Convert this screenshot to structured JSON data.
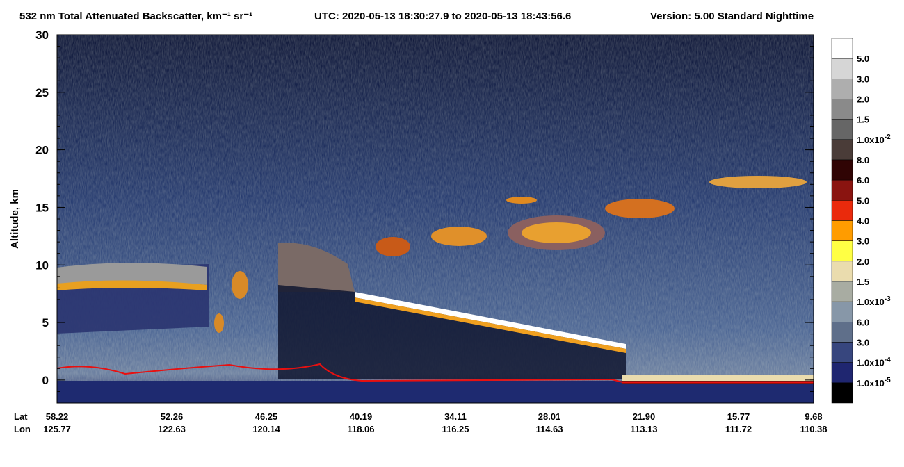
{
  "chart_data": {
    "type": "profile",
    "title": "532 nm Total Attenuated Backscatter, km⁻¹ sr⁻¹",
    "time_label": "UTC:  2020-05-13 18:30:27.9  to  2020-05-13 18:43:56.6",
    "version_label": "Version: 5.00  Standard  Nighttime",
    "ylabel": "Altitude, km",
    "ylim": [
      -2,
      30
    ],
    "yticks": [
      0,
      5,
      10,
      15,
      20,
      25,
      30
    ],
    "lat_label": "Lat",
    "lon_label": "Lon",
    "lat": [
      "58.22",
      "52.26",
      "46.25",
      "40.19",
      "34.11",
      "28.01",
      "21.90",
      "15.77",
      "9.68"
    ],
    "lon": [
      "125.77",
      "122.63",
      "120.14",
      "118.06",
      "116.25",
      "114.63",
      "113.13",
      "111.72",
      "110.38"
    ],
    "colorbar": {
      "colors": [
        "#ffffff",
        "#d6d6d6",
        "#aeaeae",
        "#8a8a8a",
        "#666666",
        "#4a3c38",
        "#300404",
        "#8a1410",
        "#ea2a0c",
        "#ff9c00",
        "#ffff44",
        "#eadcae",
        "#a8aca2",
        "#8797a8",
        "#5f6f8a",
        "#37467e",
        "#1f2670",
        "#000000"
      ],
      "labels": [
        {
          "base": "5.0"
        },
        {
          "base": "3.0"
        },
        {
          "base": "2.0"
        },
        {
          "base": "1.5"
        },
        {
          "base": "1.0x10",
          "exp": "-2"
        },
        {
          "base": "8.0"
        },
        {
          "base": "6.0"
        },
        {
          "base": "5.0"
        },
        {
          "base": "4.0"
        },
        {
          "base": "3.0"
        },
        {
          "base": "2.0"
        },
        {
          "base": "1.5"
        },
        {
          "base": "1.0x10",
          "exp": "-3"
        },
        {
          "base": "6.0"
        },
        {
          "base": "3.0"
        },
        {
          "base": "1.0x10",
          "exp": "-4"
        },
        {
          "base": "1.0x10",
          "exp": "-5"
        }
      ]
    }
  }
}
